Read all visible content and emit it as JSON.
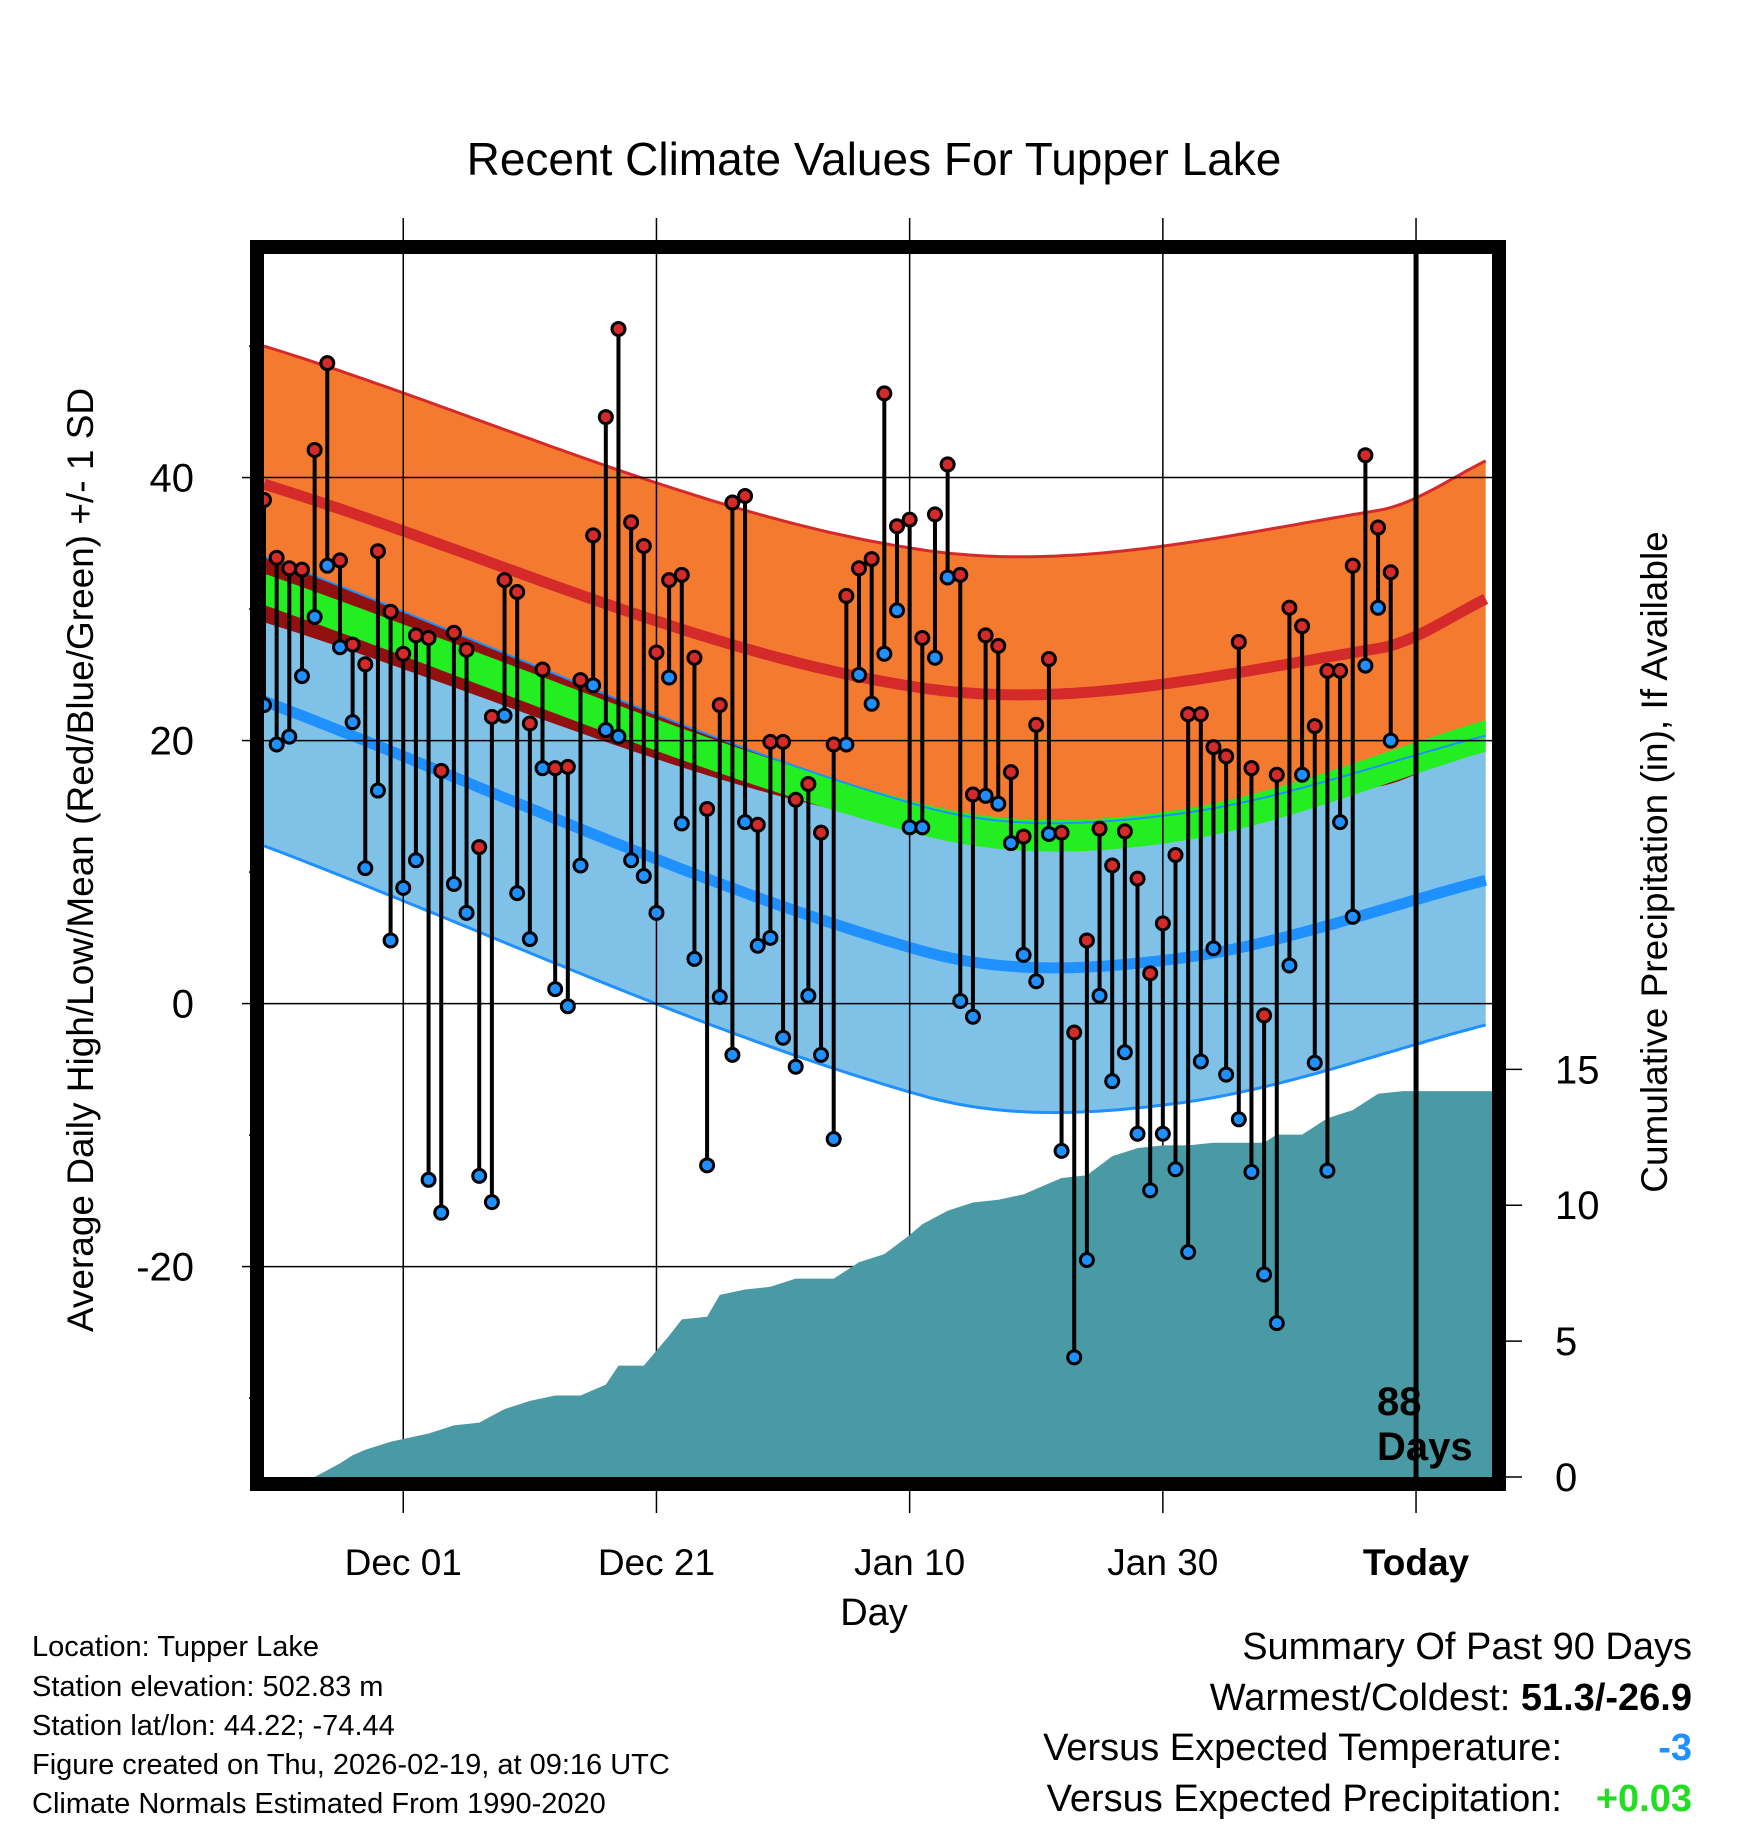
{
  "chart_data": {
    "type": "line",
    "title": "Recent Climate Values For Tupper Lake",
    "xlabel": "Day",
    "ylabel_left": "Average Daily High/Low/Mean (Red/Blue/Green) +/- 1 SD",
    "ylabel_right": "Cumulative Precipitation (in), If Available",
    "x_day_range": [
      -88,
      9
    ],
    "ylim_temp": [
      -36,
      57
    ],
    "ylim_precip": [
      0,
      45
    ],
    "x_ticks": [
      {
        "day": -77,
        "label": "Dec 01"
      },
      {
        "day": -57,
        "label": "Dec 21"
      },
      {
        "day": -37,
        "label": "Jan 10"
      },
      {
        "day": -17,
        "label": "Jan 30"
      },
      {
        "day": 3,
        "label": "Today"
      }
    ],
    "y_ticks_left": [
      {
        "value": 40,
        "label": "40"
      },
      {
        "value": 20,
        "label": "20"
      },
      {
        "value": 0,
        "label": "0"
      },
      {
        "value": -20,
        "label": "-20"
      }
    ],
    "y_ticks_right": [
      {
        "value": 15,
        "label": "15"
      },
      {
        "value": 10,
        "label": "10"
      },
      {
        "value": 5,
        "label": "5"
      },
      {
        "value": 0,
        "label": "0"
      }
    ],
    "today_day": 3,
    "today_annotation": [
      "88",
      "Days"
    ],
    "normals": {
      "high_mean_control": [
        [
          -88,
          39.5
        ],
        [
          -36,
          24
        ],
        [
          0,
          27
        ],
        [
          9,
          31
        ]
      ],
      "high_sd": 10.5,
      "low_mean_control": [
        [
          -88,
          23
        ],
        [
          -36,
          4
        ],
        [
          -16,
          3.4
        ],
        [
          9,
          9.5
        ]
      ],
      "low_sd": 11,
      "mean_control": [
        [
          -88,
          31.5
        ],
        [
          -36,
          14
        ],
        [
          -16,
          13.5
        ],
        [
          9,
          20.5
        ]
      ],
      "mean_band_halfwidth": 1.2
    },
    "daily_temperatures": {
      "days": [
        -88,
        -87,
        -86,
        -85,
        -84,
        -83,
        -82,
        -81,
        -80,
        -79,
        -78,
        -77,
        -76,
        -75,
        -74,
        -73,
        -72,
        -71,
        -70,
        -69,
        -68,
        -67,
        -66,
        -65,
        -64,
        -63,
        -62,
        -61,
        -60,
        -59,
        -58,
        -57,
        -56,
        -55,
        -54,
        -53,
        -52,
        -51,
        -50,
        -49,
        -48,
        -47,
        -46,
        -45,
        -44,
        -43,
        -42,
        -41,
        -40,
        -39,
        -38,
        -37,
        -36,
        -35,
        -34,
        -33,
        -32,
        -31,
        -30,
        -29,
        -28,
        -27,
        -26,
        -25,
        -24,
        -23,
        -22,
        -21,
        -20,
        -19,
        -18,
        -17,
        -16,
        -15,
        -14,
        -13,
        -12,
        -11,
        -10,
        -9,
        -8,
        -7,
        -6,
        -5,
        -4,
        -3,
        -2,
        -1,
        0,
        1
      ],
      "high": [
        38.3,
        33.9,
        33.1,
        33.0,
        42.1,
        48.7,
        33.7,
        27.3,
        25.8,
        34.4,
        29.8,
        26.6,
        28.0,
        27.8,
        17.7,
        28.2,
        26.9,
        11.9,
        21.8,
        32.2,
        31.3,
        21.3,
        25.4,
        17.9,
        18.0,
        24.6,
        35.6,
        44.6,
        51.3,
        36.6,
        34.8,
        26.7,
        32.2,
        32.6,
        26.3,
        14.8,
        22.7,
        38.1,
        38.6,
        13.6,
        19.9,
        19.9,
        15.5,
        16.7,
        13.0,
        19.7,
        31.0,
        33.1,
        33.8,
        46.4,
        36.3,
        36.8,
        27.8,
        37.2,
        41.0,
        32.6,
        15.9,
        28.0,
        27.2,
        17.6,
        12.7,
        21.2,
        26.2,
        13.0,
        -2.2,
        4.8,
        13.3,
        10.5,
        13.1,
        9.5,
        2.3,
        6.1,
        11.3,
        22.0,
        22.0,
        19.5,
        18.8,
        27.5,
        17.9,
        -0.9,
        17.4,
        30.1,
        28.7,
        21.1,
        25.3,
        25.3,
        33.3,
        41.7,
        36.2,
        32.8
      ],
      "low": [
        22.7,
        19.7,
        20.3,
        24.9,
        29.4,
        33.3,
        27.1,
        21.4,
        10.3,
        16.2,
        4.8,
        8.8,
        10.9,
        -13.4,
        -15.9,
        9.1,
        6.9,
        -13.1,
        -15.1,
        21.9,
        8.4,
        4.9,
        17.9,
        1.1,
        -0.2,
        10.5,
        24.2,
        20.8,
        20.3,
        10.9,
        9.7,
        6.9,
        24.8,
        13.7,
        3.4,
        -12.3,
        0.5,
        -3.9,
        13.8,
        4.4,
        5.0,
        -2.6,
        -4.8,
        0.6,
        -3.9,
        -10.3,
        19.7,
        25.0,
        22.8,
        26.6,
        29.9,
        13.4,
        13.4,
        26.3,
        32.4,
        0.2,
        -1.0,
        15.8,
        15.2,
        12.2,
        3.7,
        1.7,
        12.9,
        -11.2,
        -26.9,
        -19.5,
        0.6,
        -5.9,
        -3.7,
        -9.9,
        -14.2,
        -9.9,
        -12.6,
        -18.9,
        -4.4,
        4.2,
        -5.4,
        -8.8,
        -12.8,
        -20.6,
        -24.3,
        2.9,
        17.4,
        -4.5,
        -12.7,
        13.8,
        6.6,
        25.7,
        30.1,
        20.0
      ]
    },
    "cumulative_precipitation": {
      "days": [
        -88,
        -84,
        -82,
        -81,
        -80,
        -78,
        -75,
        -73,
        -71,
        -69,
        -67,
        -65,
        -63,
        -61,
        -60,
        -58,
        -56,
        -55,
        -53,
        -52,
        -50,
        -48,
        -46,
        -43,
        -41,
        -39,
        -37,
        -36,
        -34,
        -32,
        -30,
        -28,
        -27,
        -25,
        -23,
        -21,
        -19,
        -17,
        -15,
        -13,
        -11,
        -9,
        -8,
        -6,
        -4,
        -2,
        0,
        2,
        5,
        9
      ],
      "values": [
        0.0,
        0.0,
        0.5,
        0.8,
        1.0,
        1.3,
        1.6,
        1.9,
        2.0,
        2.5,
        2.8,
        3.0,
        3.0,
        3.4,
        4.1,
        4.1,
        5.2,
        5.8,
        5.9,
        6.7,
        6.9,
        7.0,
        7.3,
        7.3,
        7.9,
        8.2,
        8.9,
        9.3,
        9.8,
        10.1,
        10.2,
        10.4,
        10.6,
        11.0,
        11.1,
        11.8,
        12.1,
        12.2,
        12.2,
        12.3,
        12.3,
        12.3,
        12.6,
        12.6,
        13.2,
        13.5,
        14.1,
        14.2,
        14.2,
        14.2
      ]
    },
    "colors": {
      "high_band": "#f47a30",
      "high_line": "#d42a2a",
      "low_band": "#80c1e8",
      "low_line": "#1e90ff",
      "mean_band": "#22ee22",
      "overlap_band": "#931010",
      "precip_fill": "#4a9aa5",
      "high_point": "#d42a2a",
      "low_point": "#1e90ff",
      "today_line": "#000000"
    }
  },
  "footer": {
    "location": "Location: Tupper Lake",
    "elevation": "Station elevation: 502.83 m",
    "latlon": "Station lat/lon: 44.22; -74.44",
    "created": "Figure created on Thu, 2026-02-19, at 09:16 UTC",
    "normals": "Climate Normals Estimated From 1990-2020"
  },
  "summary": {
    "title": "Summary Of Past 90 Days",
    "warm_cold_label": "Warmest/Coldest: ",
    "warm_cold_value": "51.3/-26.9",
    "temp_label": "Versus Expected Temperature:",
    "temp_value": "-3",
    "temp_color": "#1e90ff",
    "precip_label": "Versus Expected Precipitation:",
    "precip_value": "+0.03",
    "precip_color": "#22dd22"
  }
}
